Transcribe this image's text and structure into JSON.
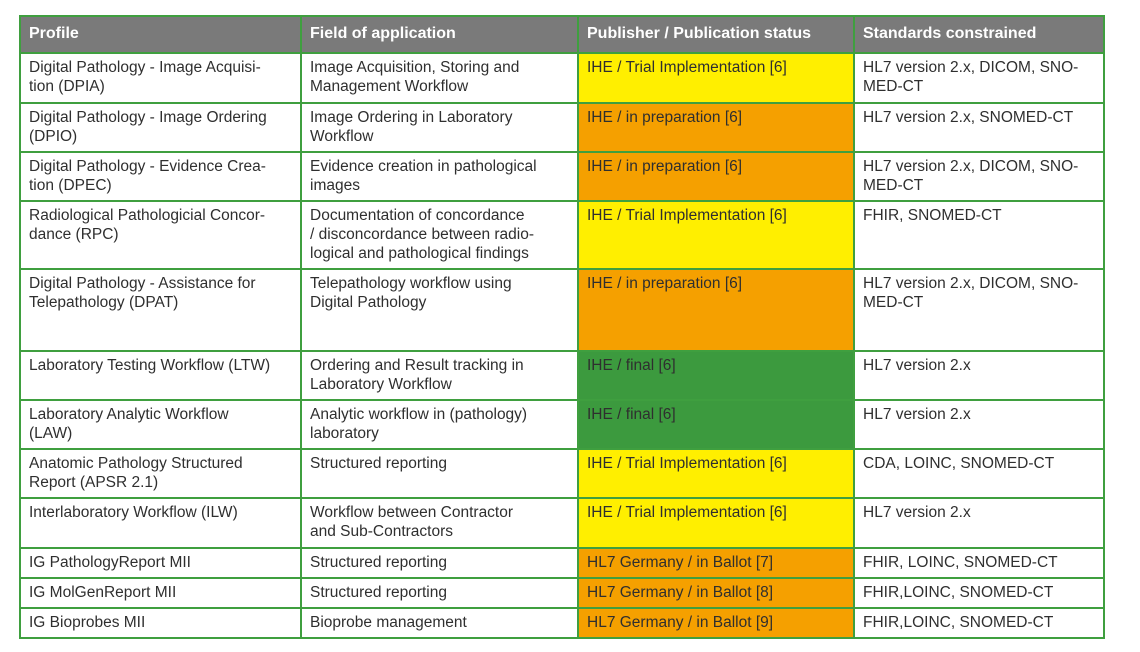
{
  "headers": [
    "Profile",
    "Field of application",
    "Publisher / Publication status",
    "Standards constrained"
  ],
  "rows": [
    {
      "profile": "Digital Pathology - Image Acquisi-\ntion (DPIA)",
      "field": "Image Acquisition, Storing and\nManagement Workflow",
      "status": "IHE / Trial Implementation [6]",
      "standards": "HL7 version 2.x, DICOM, SNO-\nMED-CT"
    },
    {
      "profile": "Digital Pathology - Image Ordering\n(DPIO)",
      "field": "Image Ordering in Laboratory\nWorkflow",
      "status": "IHE / in preparation [6]",
      "standards": "HL7 version 2.x, SNOMED-CT"
    },
    {
      "profile": "Digital Pathology - Evidence Crea-\ntion (DPEC)",
      "field": "Evidence creation in pathological\nimages",
      "status": "IHE / in preparation [6]",
      "standards": "HL7 version 2.x, DICOM, SNO-\nMED-CT"
    },
    {
      "profile": "Radiological Pathologicial Concor-\ndance (RPC)",
      "field": "Documentation of concordance\n/ disconcordance between radio-\nlogical and pathological findings",
      "status": "IHE / Trial Implementation [6]",
      "standards": "FHIR, SNOMED-CT"
    },
    {
      "profile": "Digital Pathology - Assistance for\nTelepathology (DPAT)",
      "field": "Telepathology workflow using\nDigital Pathology",
      "status": "IHE / in preparation [6]",
      "standards": "HL7 version 2.x, DICOM, SNO-\nMED-CT"
    },
    {
      "profile": "Laboratory Testing Workflow (LTW)",
      "field": "Ordering and Result tracking in\nLaboratory Workflow",
      "status": "IHE / final [6]",
      "standards": "HL7 version 2.x"
    },
    {
      "profile": "Laboratory Analytic Workflow\n(LAW)",
      "field": "Analytic workflow in (pathology)\nlaboratory",
      "status": "IHE / final [6]",
      "standards": "HL7 version 2.x"
    },
    {
      "profile": "Anatomic Pathology Structured\nReport (APSR 2.1)",
      "field": "Structured reporting",
      "status": "IHE / Trial Implementation [6]",
      "standards": "CDA, LOINC, SNOMED-CT"
    },
    {
      "profile": "Interlaboratory Workflow (ILW)",
      "field": "Workflow between Contractor\nand Sub-Contractors",
      "status": "IHE / Trial Implementation [6]",
      "standards": "HL7 version 2.x"
    },
    {
      "profile": "IG PathologyReport MII",
      "field": "Structured reporting",
      "status": "HL7 Germany / in Ballot [7]",
      "standards": "FHIR, LOINC, SNOMED-CT"
    },
    {
      "profile": "IG MolGenReport MII",
      "field": "Structured reporting",
      "status": "HL7 Germany / in Ballot [8]",
      "standards": "FHIR,LOINC, SNOMED-CT"
    },
    {
      "profile": "IG Bioprobes MII",
      "field": "Bioprobe management",
      "status": "HL7 Germany / in Ballot [9]",
      "standards": "FHIR,LOINC, SNOMED-CT"
    }
  ],
  "colors": {
    "trial": "#ffef00",
    "preparation": "#f5a000",
    "final": "#3c9a3e",
    "ballot": "#f5a000",
    "header_bg": "#7a7a7a",
    "border": "#3f9f3f"
  }
}
